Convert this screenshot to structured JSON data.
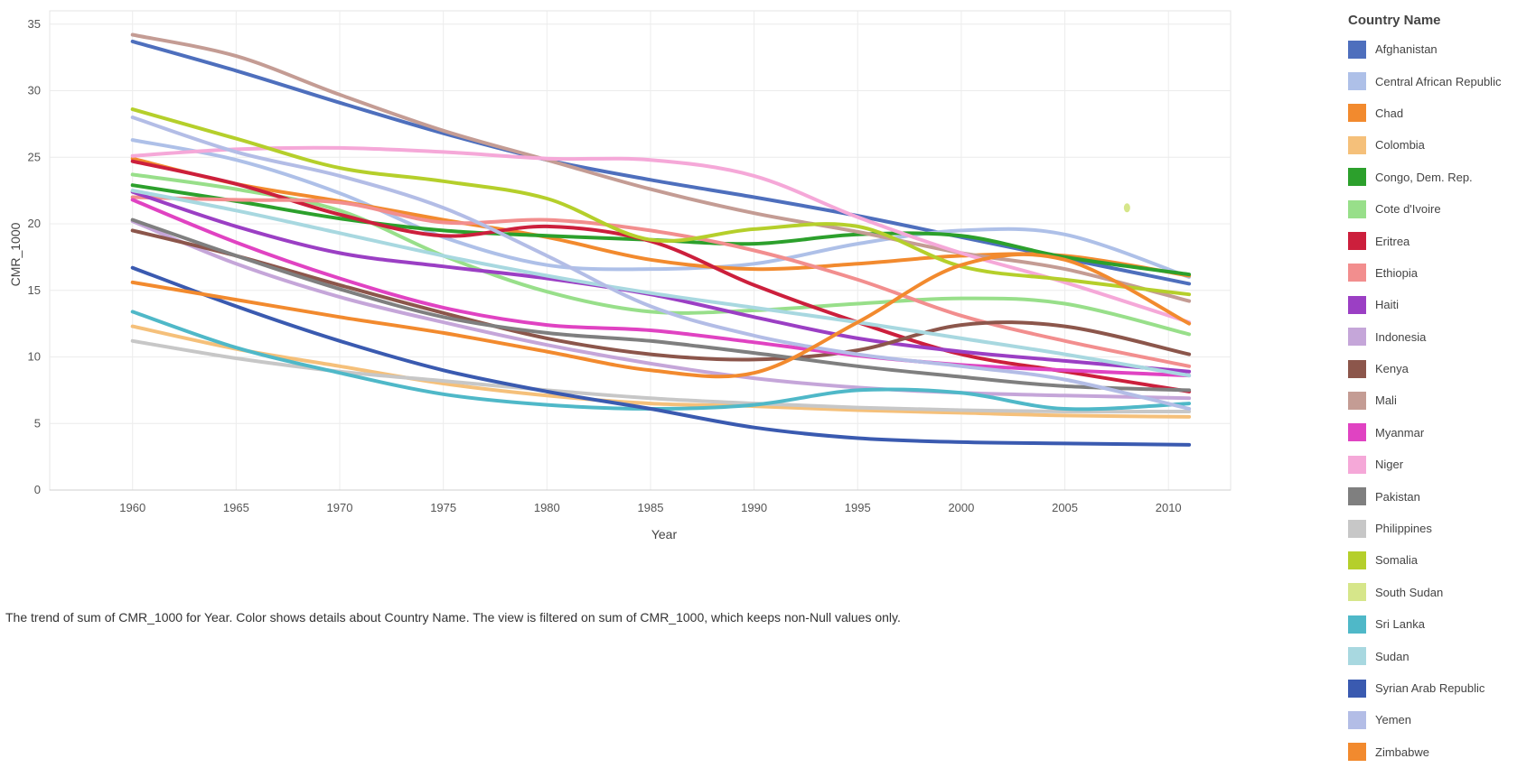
{
  "chart_data": {
    "type": "line",
    "xlabel": "Year",
    "ylabel": "CMR_1000",
    "xlim": [
      1956,
      2013
    ],
    "ylim": [
      0,
      36
    ],
    "x_ticks": [
      1960,
      1965,
      1970,
      1975,
      1980,
      1985,
      1990,
      1995,
      2000,
      2005,
      2010
    ],
    "y_ticks": [
      0,
      5,
      10,
      15,
      20,
      25,
      30,
      35
    ],
    "grid": true,
    "legend_position": "right",
    "legend_title": "Country Name",
    "caption": "The trend of sum of CMR_1000 for Year.  Color shows details about Country Name. The view is filtered on sum of CMR_1000, which keeps non-Null values only.",
    "series": [
      {
        "name": "Afghanistan",
        "color": "#4e6fbd",
        "x": [
          1960,
          1965,
          1970,
          1975,
          1980,
          1985,
          1990,
          1995,
          2000,
          2005,
          2011
        ],
        "y": [
          33.7,
          31.5,
          29.1,
          26.8,
          24.8,
          23.3,
          22.0,
          20.6,
          19.0,
          17.4,
          15.5
        ]
      },
      {
        "name": "Central African Republic",
        "color": "#aec0e8",
        "x": [
          1960,
          1965,
          1970,
          1975,
          1980,
          1985,
          1990,
          1995,
          2000,
          2005,
          2011
        ],
        "y": [
          26.3,
          24.8,
          22.3,
          19.0,
          16.9,
          16.6,
          17.0,
          18.5,
          19.5,
          19.2,
          16.0
        ]
      },
      {
        "name": "Chad",
        "color": "#f28a2e",
        "x": [
          1960,
          1965,
          1970,
          1975,
          1980,
          1985,
          1990,
          1995,
          2000,
          2005,
          2011
        ],
        "y": [
          24.9,
          23.0,
          21.7,
          20.3,
          19.0,
          17.3,
          16.6,
          17.0,
          17.6,
          17.6,
          16.1
        ]
      },
      {
        "name": "Colombia",
        "color": "#f5c07a",
        "x": [
          1960,
          1965,
          1970,
          1975,
          1980,
          1985,
          1990,
          1995,
          2000,
          2005,
          2011
        ],
        "y": [
          12.3,
          10.6,
          9.3,
          8.0,
          7.1,
          6.5,
          6.3,
          6.0,
          5.8,
          5.6,
          5.5
        ]
      },
      {
        "name": "Congo, Dem. Rep.",
        "color": "#2ca02c",
        "x": [
          1960,
          1965,
          1970,
          1975,
          1980,
          1985,
          1990,
          1995,
          2000,
          2005,
          2011
        ],
        "y": [
          22.9,
          21.7,
          20.4,
          19.5,
          19.1,
          18.8,
          18.5,
          19.2,
          19.1,
          17.5,
          16.2
        ]
      },
      {
        "name": "Cote d'Ivoire",
        "color": "#98df8a",
        "x": [
          1960,
          1965,
          1970,
          1975,
          1980,
          1985,
          1990,
          1995,
          2000,
          2005,
          2011
        ],
        "y": [
          23.7,
          22.6,
          21.0,
          17.6,
          14.9,
          13.4,
          13.5,
          14.0,
          14.4,
          14.0,
          11.7
        ]
      },
      {
        "name": "Eritrea",
        "color": "#cc1f3c",
        "x": [
          1960,
          1965,
          1970,
          1975,
          1980,
          1985,
          1990,
          1995,
          2000,
          2005,
          2011
        ],
        "y": [
          24.7,
          23.0,
          20.7,
          19.1,
          19.8,
          18.7,
          15.4,
          12.6,
          10.2,
          8.9,
          7.4
        ]
      },
      {
        "name": "Ethiopia",
        "color": "#f28e8e",
        "x": [
          1960,
          1965,
          1970,
          1975,
          1980,
          1985,
          1990,
          1995,
          2000,
          2005,
          2011
        ],
        "y": [
          22.0,
          21.8,
          21.6,
          20.1,
          20.3,
          19.5,
          18.0,
          15.8,
          13.1,
          11.2,
          9.3
        ]
      },
      {
        "name": "Haiti",
        "color": "#9b3fc4",
        "x": [
          1960,
          1965,
          1970,
          1975,
          1980,
          1985,
          1990,
          1995,
          2000,
          2005,
          2011
        ],
        "y": [
          22.4,
          19.8,
          17.8,
          16.8,
          15.9,
          14.7,
          13.0,
          11.4,
          10.4,
          9.7,
          8.9
        ]
      },
      {
        "name": "Indonesia",
        "color": "#c5a6d9",
        "x": [
          1960,
          1965,
          1970,
          1975,
          1980,
          1985,
          1990,
          1995,
          2000,
          2005,
          2011
        ],
        "y": [
          20.2,
          17.0,
          14.5,
          12.6,
          10.9,
          9.5,
          8.4,
          7.7,
          7.3,
          7.1,
          6.9
        ]
      },
      {
        "name": "Kenya",
        "color": "#8c564b",
        "x": [
          1960,
          1965,
          1970,
          1975,
          1980,
          1985,
          1990,
          1995,
          2000,
          2005,
          2011
        ],
        "y": [
          19.5,
          17.6,
          15.4,
          13.3,
          11.4,
          10.2,
          9.8,
          10.5,
          12.4,
          12.3,
          10.2
        ]
      },
      {
        "name": "Mali",
        "color": "#c49c94",
        "x": [
          1960,
          1965,
          1970,
          1975,
          1980,
          1985,
          1990,
          1995,
          2000,
          2005,
          2011
        ],
        "y": [
          34.2,
          32.6,
          29.7,
          27.0,
          24.8,
          22.6,
          20.8,
          19.4,
          17.8,
          16.6,
          14.2
        ]
      },
      {
        "name": "Myanmar",
        "color": "#e043c2",
        "x": [
          1960,
          1965,
          1970,
          1975,
          1980,
          1985,
          1990,
          1995,
          2000,
          2005,
          2011
        ],
        "y": [
          21.8,
          18.6,
          15.9,
          13.7,
          12.4,
          12.0,
          11.1,
          10.1,
          9.4,
          9.0,
          8.6
        ]
      },
      {
        "name": "Niger",
        "color": "#f5a8d8",
        "x": [
          1960,
          1965,
          1970,
          1975,
          1980,
          1985,
          1990,
          1995,
          2000,
          2005,
          2011
        ],
        "y": [
          25.1,
          25.6,
          25.7,
          25.4,
          24.9,
          24.8,
          23.6,
          20.5,
          17.8,
          15.6,
          12.6
        ]
      },
      {
        "name": "Pakistan",
        "color": "#7f7f7f",
        "x": [
          1960,
          1965,
          1970,
          1975,
          1980,
          1985,
          1990,
          1995,
          2000,
          2005,
          2011
        ],
        "y": [
          20.3,
          17.6,
          15.1,
          13.0,
          11.8,
          11.2,
          10.3,
          9.3,
          8.5,
          7.8,
          7.5
        ]
      },
      {
        "name": "Philippines",
        "color": "#c7c7c7",
        "x": [
          1960,
          1965,
          1970,
          1975,
          1980,
          1985,
          1990,
          1995,
          2000,
          2005,
          2011
        ],
        "y": [
          11.2,
          9.9,
          8.9,
          8.2,
          7.5,
          6.9,
          6.5,
          6.2,
          6.0,
          5.9,
          5.9
        ]
      },
      {
        "name": "Somalia",
        "color": "#b5cf2b",
        "x": [
          1960,
          1965,
          1970,
          1975,
          1980,
          1985,
          1990,
          1995,
          2000,
          2005,
          2011
        ],
        "y": [
          28.6,
          26.4,
          24.2,
          23.2,
          21.9,
          18.8,
          19.6,
          19.8,
          16.8,
          15.8,
          14.7
        ]
      },
      {
        "name": "South Sudan",
        "color": "#d6e68a",
        "x": [
          2008
        ],
        "y": [
          21.2
        ]
      },
      {
        "name": "Sri Lanka",
        "color": "#4fb8c8",
        "x": [
          1960,
          1965,
          1970,
          1975,
          1980,
          1985,
          1990,
          1995,
          2000,
          2005,
          2011
        ],
        "y": [
          13.4,
          10.7,
          8.8,
          7.2,
          6.4,
          6.1,
          6.4,
          7.5,
          7.3,
          6.1,
          6.5
        ]
      },
      {
        "name": "Sudan",
        "color": "#a8d8e0",
        "x": [
          1960,
          1965,
          1970,
          1975,
          1980,
          1985,
          1990,
          1995,
          2000,
          2005,
          2011
        ],
        "y": [
          22.5,
          21.0,
          19.3,
          17.6,
          16.1,
          14.8,
          13.7,
          12.6,
          11.4,
          10.2,
          8.6
        ]
      },
      {
        "name": "Syrian Arab Republic",
        "color": "#3a5ab0",
        "x": [
          1960,
          1965,
          1970,
          1975,
          1980,
          1985,
          1990,
          1995,
          2000,
          2005,
          2011
        ],
        "y": [
          16.7,
          13.8,
          11.2,
          9.0,
          7.4,
          6.1,
          4.7,
          3.9,
          3.6,
          3.5,
          3.4
        ]
      },
      {
        "name": "Yemen",
        "color": "#b3bde6",
        "x": [
          1960,
          1965,
          1970,
          1975,
          1980,
          1985,
          1990,
          1995,
          2000,
          2005,
          2011
        ],
        "y": [
          28.0,
          25.4,
          23.6,
          21.2,
          17.6,
          13.8,
          11.6,
          10.2,
          9.3,
          8.3,
          6.1
        ]
      },
      {
        "name": "Zimbabwe",
        "color": "#f28a2e",
        "x": [
          1960,
          1965,
          1970,
          1975,
          1980,
          1985,
          1990,
          1995,
          2000,
          2005,
          2011
        ],
        "y": [
          15.6,
          14.3,
          13.0,
          11.8,
          10.4,
          9.0,
          8.8,
          12.6,
          16.9,
          17.3,
          12.5
        ]
      }
    ]
  }
}
